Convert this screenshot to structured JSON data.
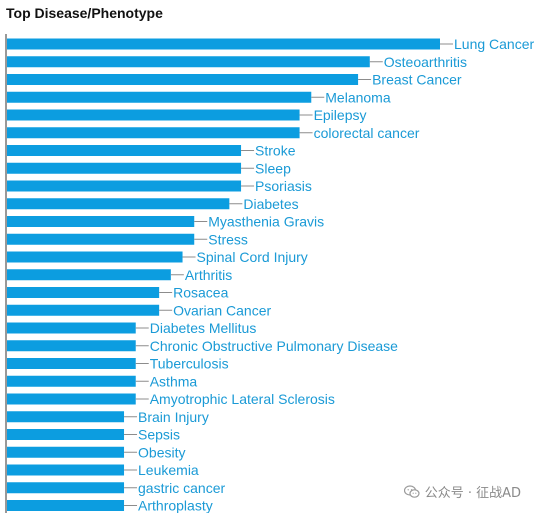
{
  "chart_data": {
    "type": "bar",
    "orientation": "horizontal",
    "title": "Top Disease/Phenotype",
    "xlabel": "",
    "ylabel": "",
    "grid": false,
    "legend": "none",
    "bar_color": "#0c9de0",
    "label_color": "#1a9ad6",
    "axis_color": "#333333",
    "categories": [
      "Lung Cancer",
      "Osteoarthritis",
      "Breast Cancer",
      "Melanoma",
      "Epilepsy",
      "colorectal cancer",
      "Stroke",
      "Sleep",
      "Psoriasis",
      "Diabetes",
      "Myasthenia Gravis",
      "Stress",
      "Spinal Cord Injury",
      "Arthritis",
      "Rosacea",
      "Ovarian Cancer",
      "Diabetes Mellitus",
      "Chronic Obstructive Pulmonary Disease",
      "Tuberculosis",
      "Asthma",
      "Amyotrophic Lateral Sclerosis",
      "Brain Injury",
      "Sepsis",
      "Obesity",
      "Leukemia",
      "gastric cancer",
      "Arthroplasty"
    ],
    "values": [
      37,
      31,
      30,
      26,
      25,
      25,
      20,
      20,
      20,
      19,
      16,
      16,
      15,
      14,
      13,
      13,
      11,
      11,
      11,
      11,
      11,
      10,
      10,
      10,
      10,
      10,
      10
    ],
    "xlim": [
      0,
      37
    ]
  },
  "watermark": {
    "text": "公众号 · 征战AD",
    "icon": "wechat-icon"
  }
}
